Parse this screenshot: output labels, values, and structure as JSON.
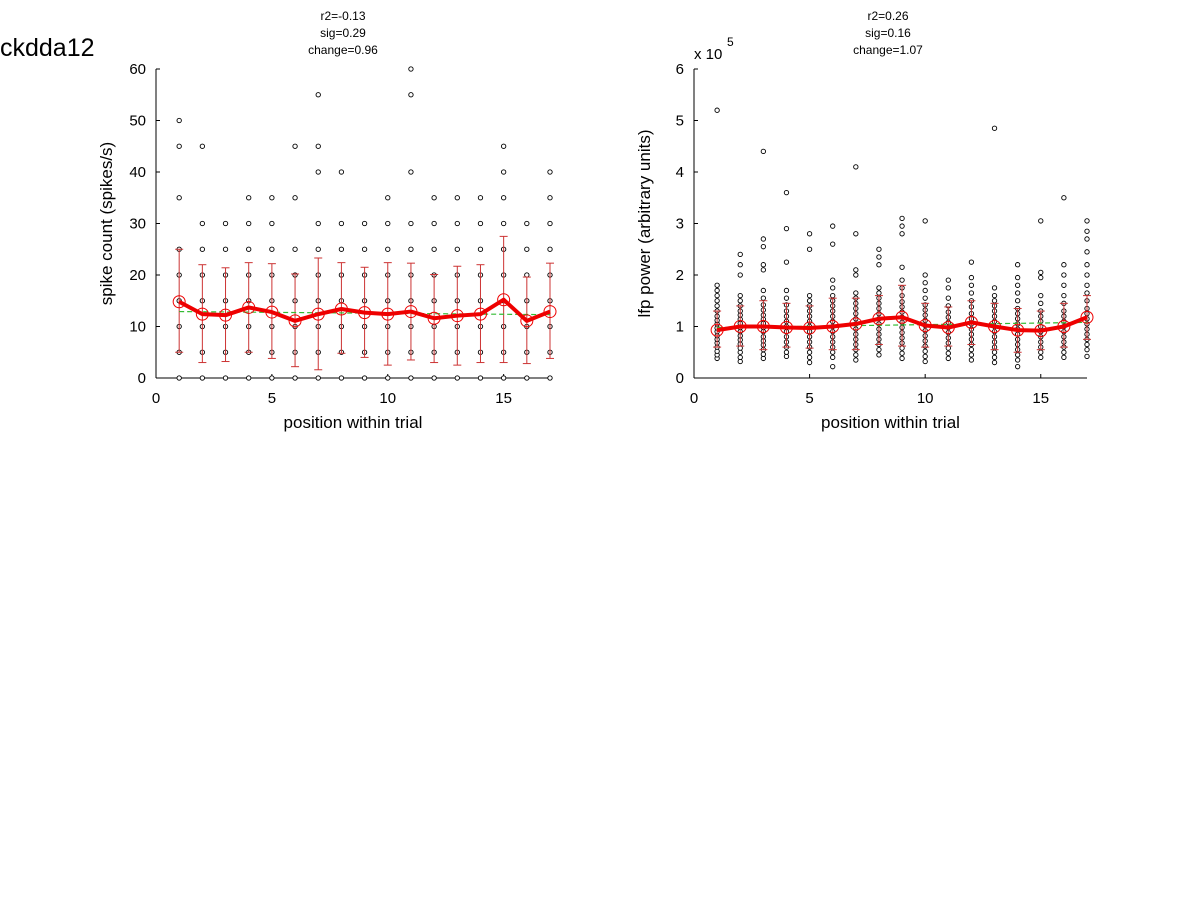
{
  "figure": {
    "title": "ckdda12"
  },
  "chart_data": [
    {
      "type": "scatter",
      "stats": [
        "r2=-0.13",
        "sig=0.29",
        "change=0.96"
      ],
      "xlabel": "position within trial",
      "ylabel": "spike count (spikes/s)",
      "xlim": [
        0,
        17
      ],
      "ylim": [
        0,
        60
      ],
      "xticks": [
        0,
        5,
        10,
        15
      ],
      "yticks": [
        0,
        10,
        20,
        30,
        40,
        50,
        60
      ],
      "exponent_label": "",
      "colors": {
        "points": "#000000",
        "mean_line": "#ee0000",
        "error_bars": "#cc3333",
        "fit_line": "#33bb33"
      },
      "scatter": [
        {
          "x": 1,
          "y": [
            0,
            5,
            10,
            15,
            20,
            25,
            35,
            45,
            50
          ]
        },
        {
          "x": 2,
          "y": [
            0,
            5,
            10,
            15,
            20,
            25,
            30,
            45
          ]
        },
        {
          "x": 3,
          "y": [
            0,
            5,
            10,
            15,
            20,
            25,
            30
          ]
        },
        {
          "x": 4,
          "y": [
            0,
            5,
            10,
            15,
            20,
            25,
            30,
            35
          ]
        },
        {
          "x": 5,
          "y": [
            0,
            5,
            10,
            15,
            20,
            25,
            30,
            35
          ]
        },
        {
          "x": 6,
          "y": [
            0,
            5,
            10,
            15,
            20,
            25,
            35,
            45
          ]
        },
        {
          "x": 7,
          "y": [
            0,
            5,
            10,
            15,
            20,
            25,
            30,
            40,
            45,
            55
          ]
        },
        {
          "x": 8,
          "y": [
            0,
            5,
            10,
            15,
            20,
            25,
            30,
            40
          ]
        },
        {
          "x": 9,
          "y": [
            0,
            5,
            10,
            15,
            20,
            25,
            30
          ]
        },
        {
          "x": 10,
          "y": [
            0,
            5,
            10,
            15,
            20,
            25,
            30,
            35
          ]
        },
        {
          "x": 11,
          "y": [
            0,
            5,
            10,
            15,
            20,
            25,
            30,
            40,
            55,
            60
          ]
        },
        {
          "x": 12,
          "y": [
            0,
            5,
            10,
            15,
            20,
            25,
            30,
            35
          ]
        },
        {
          "x": 13,
          "y": [
            0,
            5,
            10,
            15,
            20,
            25,
            30,
            35
          ]
        },
        {
          "x": 14,
          "y": [
            0,
            5,
            10,
            15,
            20,
            25,
            30,
            35
          ]
        },
        {
          "x": 15,
          "y": [
            0,
            5,
            10,
            15,
            20,
            25,
            30,
            35,
            40,
            45
          ]
        },
        {
          "x": 16,
          "y": [
            0,
            5,
            10,
            15,
            20,
            25,
            30
          ]
        },
        {
          "x": 17,
          "y": [
            0,
            5,
            10,
            15,
            20,
            25,
            30,
            35,
            40
          ]
        }
      ],
      "mean": [
        14.8,
        12.4,
        12.2,
        13.7,
        12.8,
        11.1,
        12.4,
        13.4,
        12.7,
        12.4,
        12.9,
        11.6,
        12.1,
        12.4,
        15.2,
        11.1,
        12.9
      ],
      "error_low": [
        5.0,
        3.0,
        3.2,
        5.0,
        3.8,
        2.2,
        1.6,
        4.8,
        4.0,
        2.5,
        3.5,
        3.0,
        2.5,
        3.0,
        3.0,
        2.8,
        3.8
      ],
      "error_high": [
        25.0,
        22.0,
        21.4,
        22.4,
        22.2,
        20.2,
        23.3,
        22.4,
        21.5,
        22.4,
        22.3,
        20.1,
        21.7,
        22.0,
        27.5,
        19.6,
        22.3
      ],
      "fit": [
        [
          1,
          12.9
        ],
        [
          17,
          12.3
        ]
      ]
    },
    {
      "type": "scatter",
      "stats": [
        "r2=0.26",
        "sig=0.16",
        "change=1.07"
      ],
      "xlabel": "position within trial",
      "ylabel": "lfp power (arbitrary units)",
      "xlim": [
        0,
        17
      ],
      "ylim": [
        0,
        6
      ],
      "xticks": [
        0,
        5,
        10,
        15
      ],
      "yticks": [
        0,
        1,
        2,
        3,
        4,
        5,
        6
      ],
      "exponent_label": "x 10",
      "exponent_power": "5",
      "colors": {
        "points": "#000000",
        "mean_line": "#ee0000",
        "error_bars": "#cc3333",
        "fit_line": "#33bb33"
      },
      "scatter": [
        {
          "x": 1,
          "y": [
            0.38,
            0.45,
            0.52,
            0.6,
            0.68,
            0.75,
            0.82,
            0.9,
            0.97,
            1.05,
            1.12,
            1.2,
            1.3,
            1.4,
            1.5,
            1.6,
            1.7,
            1.8,
            5.2
          ]
        },
        {
          "x": 2,
          "y": [
            0.32,
            0.4,
            0.5,
            0.58,
            0.66,
            0.74,
            0.82,
            0.9,
            0.98,
            1.06,
            1.14,
            1.22,
            1.3,
            1.4,
            1.5,
            1.6,
            2.0,
            2.2,
            2.4
          ]
        },
        {
          "x": 3,
          "y": [
            0.38,
            0.46,
            0.55,
            0.64,
            0.72,
            0.8,
            0.9,
            0.98,
            1.06,
            1.14,
            1.22,
            1.32,
            1.42,
            1.55,
            1.7,
            2.1,
            2.2,
            2.55,
            2.7,
            4.4
          ]
        },
        {
          "x": 4,
          "y": [
            0.42,
            0.5,
            0.6,
            0.7,
            0.8,
            0.9,
            1.0,
            1.1,
            1.2,
            1.3,
            1.42,
            1.55,
            1.7,
            2.25,
            2.9,
            3.6
          ]
        },
        {
          "x": 5,
          "y": [
            0.3,
            0.4,
            0.5,
            0.6,
            0.7,
            0.8,
            0.9,
            1.0,
            1.1,
            1.2,
            1.3,
            1.4,
            1.5,
            1.6,
            2.5,
            2.8
          ]
        },
        {
          "x": 6,
          "y": [
            0.22,
            0.4,
            0.5,
            0.6,
            0.7,
            0.8,
            0.9,
            1.0,
            1.1,
            1.2,
            1.3,
            1.4,
            1.5,
            1.6,
            1.75,
            1.9,
            2.6,
            2.95
          ]
        },
        {
          "x": 7,
          "y": [
            0.35,
            0.45,
            0.55,
            0.65,
            0.75,
            0.85,
            0.95,
            1.05,
            1.15,
            1.25,
            1.35,
            1.45,
            1.55,
            1.65,
            2.0,
            2.1,
            2.8,
            4.1
          ]
        },
        {
          "x": 8,
          "y": [
            0.45,
            0.55,
            0.65,
            0.75,
            0.85,
            0.95,
            1.05,
            1.15,
            1.25,
            1.35,
            1.45,
            1.55,
            1.65,
            1.75,
            2.2,
            2.35,
            2.5
          ]
        },
        {
          "x": 9,
          "y": [
            0.38,
            0.48,
            0.58,
            0.68,
            0.78,
            0.88,
            0.98,
            1.08,
            1.18,
            1.28,
            1.38,
            1.48,
            1.6,
            1.75,
            1.9,
            2.15,
            2.8,
            2.95,
            3.1
          ]
        },
        {
          "x": 10,
          "y": [
            0.32,
            0.42,
            0.52,
            0.62,
            0.72,
            0.82,
            0.92,
            1.02,
            1.12,
            1.22,
            1.32,
            1.42,
            1.55,
            1.7,
            1.85,
            2.0,
            3.05
          ]
        },
        {
          "x": 11,
          "y": [
            0.38,
            0.48,
            0.58,
            0.68,
            0.78,
            0.88,
            0.98,
            1.08,
            1.18,
            1.28,
            1.4,
            1.55,
            1.75,
            1.9
          ]
        },
        {
          "x": 12,
          "y": [
            0.35,
            0.45,
            0.55,
            0.65,
            0.75,
            0.85,
            0.95,
            1.05,
            1.15,
            1.25,
            1.38,
            1.5,
            1.65,
            1.8,
            1.95,
            2.25
          ]
        },
        {
          "x": 13,
          "y": [
            0.3,
            0.4,
            0.5,
            0.6,
            0.7,
            0.8,
            0.9,
            1.0,
            1.1,
            1.2,
            1.3,
            1.4,
            1.5,
            1.6,
            1.75,
            4.85
          ]
        },
        {
          "x": 14,
          "y": [
            0.22,
            0.35,
            0.45,
            0.55,
            0.65,
            0.75,
            0.85,
            0.95,
            1.05,
            1.15,
            1.25,
            1.35,
            1.5,
            1.65,
            1.8,
            1.95,
            2.2
          ]
        },
        {
          "x": 15,
          "y": [
            0.4,
            0.5,
            0.6,
            0.7,
            0.8,
            0.9,
            1.0,
            1.1,
            1.2,
            1.3,
            1.45,
            1.6,
            1.95,
            2.05,
            3.05
          ]
        },
        {
          "x": 16,
          "y": [
            0.4,
            0.5,
            0.6,
            0.7,
            0.8,
            0.9,
            1.0,
            1.1,
            1.2,
            1.3,
            1.45,
            1.6,
            1.8,
            2.0,
            2.2,
            3.5
          ]
        },
        {
          "x": 17,
          "y": [
            0.42,
            0.55,
            0.65,
            0.75,
            0.85,
            0.95,
            1.05,
            1.15,
            1.25,
            1.35,
            1.5,
            1.65,
            1.8,
            2.0,
            2.2,
            2.45,
            2.7,
            2.85,
            3.05
          ]
        }
      ],
      "mean": [
        0.93,
        1.0,
        1.0,
        0.98,
        0.97,
        1.0,
        1.05,
        1.15,
        1.18,
        1.02,
        0.98,
        1.08,
        1.0,
        0.93,
        0.92,
        1.0,
        1.18
      ],
      "error_low": [
        0.6,
        0.62,
        0.55,
        0.6,
        0.58,
        0.55,
        0.55,
        0.65,
        0.62,
        0.6,
        0.62,
        0.65,
        0.55,
        0.5,
        0.55,
        0.6,
        0.75
      ],
      "error_high": [
        1.3,
        1.4,
        1.5,
        1.45,
        1.4,
        1.55,
        1.55,
        1.6,
        1.8,
        1.45,
        1.38,
        1.5,
        1.45,
        1.35,
        1.3,
        1.45,
        1.6
      ],
      "fit": [
        [
          1,
          0.98
        ],
        [
          17,
          1.08
        ]
      ]
    }
  ]
}
